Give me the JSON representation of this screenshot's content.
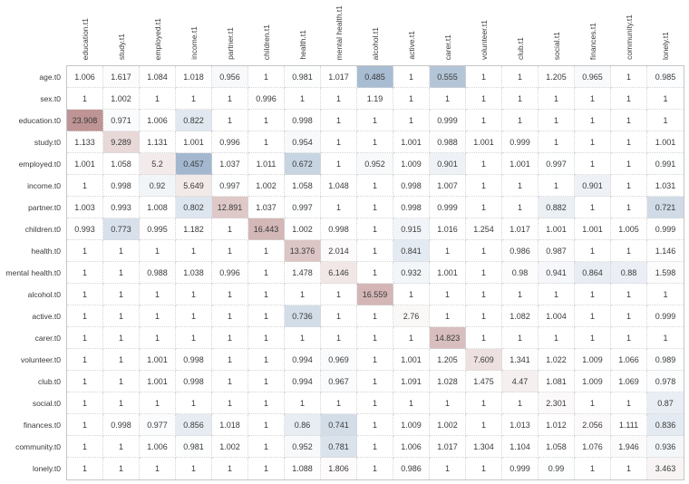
{
  "colors": {
    "background": "#ffffff",
    "cell_text": "#3a3a3a",
    "label_text": "#3a3a3a",
    "grid_line_inner": "#d6d6d6",
    "grid_line_outer": "#c6c6c6",
    "positive_anchor": "#bc8f8f",
    "negative_anchor": "#a0b6ce",
    "neutral": "#ffffff"
  },
  "chart_data": {
    "type": "heatmap",
    "title": "",
    "xlabel": "",
    "ylabel": "",
    "legend": "none",
    "grid": "dotted",
    "color_center_value": 1,
    "color_scale": "diverging red (>1) / blue (<1), white at 1",
    "rows": [
      "age.t0",
      "sex.t0",
      "education.t0",
      "study.t0",
      "employed.t0",
      "income.t0",
      "partner.t0",
      "children.t0",
      "health.t0",
      "mental health.t0",
      "alcohol.t0",
      "active.t0",
      "carer.t0",
      "volunteer.t0",
      "club.t0",
      "social.t0",
      "finances.t0",
      "community.t0",
      "lonely.t0"
    ],
    "columns": [
      "education.t1",
      "study.t1",
      "employed.t1",
      "income.t1",
      "partner.t1",
      "children.t1",
      "health.t1",
      "mental health.t1",
      "alcohol.t1",
      "active.t1",
      "carer.t1",
      "volunteer.t1",
      "club.t1",
      "social.t1",
      "finances.t1",
      "community.t1",
      "lonely.t1"
    ],
    "values": [
      [
        1.006,
        1.617,
        1.084,
        1.018,
        0.956,
        1,
        0.981,
        1.017,
        0.485,
        1,
        0.555,
        1,
        1,
        1.205,
        0.965,
        1,
        0.985
      ],
      [
        1,
        1.002,
        1,
        1,
        1,
        0.996,
        1,
        1,
        1.19,
        1,
        1,
        1,
        1,
        1,
        1,
        1,
        1
      ],
      [
        23.908,
        0.971,
        1.006,
        0.822,
        1,
        1,
        0.998,
        1,
        1,
        1,
        0.999,
        1,
        1,
        1,
        1,
        1,
        1
      ],
      [
        1.133,
        9.289,
        1.131,
        1.001,
        0.996,
        1,
        0.954,
        1,
        1,
        1.001,
        0.988,
        1.001,
        0.999,
        1,
        1,
        1,
        1.001
      ],
      [
        1.001,
        1.058,
        5.2,
        0.457,
        1.037,
        1.011,
        0.672,
        1,
        0.952,
        1.009,
        0.901,
        1,
        1.001,
        0.997,
        1,
        1,
        0.991
      ],
      [
        1,
        0.998,
        0.92,
        5.649,
        0.997,
        1.002,
        1.058,
        1.048,
        1,
        0.998,
        1.007,
        1,
        1,
        1,
        0.901,
        1,
        1.031
      ],
      [
        1.003,
        0.993,
        1.008,
        0.802,
        12.891,
        1.037,
        0.997,
        1,
        1,
        0.998,
        0.999,
        1,
        1,
        0.882,
        1,
        1,
        0.721
      ],
      [
        0.993,
        0.773,
        0.995,
        1.182,
        1,
        16.443,
        1.002,
        0.998,
        1,
        0.915,
        1.016,
        1.254,
        1.017,
        1.001,
        1.001,
        1.005,
        0.999
      ],
      [
        1,
        1,
        1,
        1,
        1,
        1,
        13.376,
        2.014,
        1,
        0.841,
        1,
        1,
        0.986,
        0.987,
        1,
        1,
        1.146
      ],
      [
        1,
        1,
        0.988,
        1.038,
        0.996,
        1,
        1.478,
        6.146,
        1,
        0.932,
        1.001,
        1,
        0.98,
        0.941,
        0.864,
        0.88,
        1.598
      ],
      [
        1,
        1,
        1,
        1,
        1,
        1,
        1,
        1,
        16.559,
        1,
        1,
        1,
        1,
        1,
        1,
        1,
        1
      ],
      [
        1,
        1,
        1,
        1,
        1,
        1,
        0.736,
        1,
        1,
        2.76,
        1,
        1,
        1.082,
        1.004,
        1,
        1,
        0.999
      ],
      [
        1,
        1,
        1,
        1,
        1,
        1,
        1,
        1,
        1,
        1,
        14.823,
        1,
        1,
        1,
        1,
        1,
        1
      ],
      [
        1,
        1,
        1.001,
        0.998,
        1,
        1,
        0.994,
        0.969,
        1,
        1.001,
        1.205,
        7.609,
        1.341,
        1.022,
        1.009,
        1.066,
        0.989
      ],
      [
        1,
        1,
        1.001,
        0.998,
        1,
        1,
        0.994,
        0.967,
        1,
        1.091,
        1.028,
        1.475,
        4.47,
        1.081,
        1.009,
        1.069,
        0.978
      ],
      [
        1,
        1,
        1,
        1,
        1,
        1,
        1,
        1,
        1,
        1,
        1,
        1,
        1,
        2.301,
        1,
        1,
        0.87
      ],
      [
        1,
        0.998,
        0.977,
        0.856,
        1.018,
        1,
        0.86,
        0.741,
        1,
        1.009,
        1.002,
        1,
        1.013,
        1.012,
        2.056,
        1.111,
        0.836
      ],
      [
        1,
        1,
        1.006,
        0.981,
        1.002,
        1,
        0.952,
        0.781,
        1,
        1.006,
        1.017,
        1.304,
        1.104,
        1.058,
        1.076,
        1.946,
        0.936
      ],
      [
        1,
        1,
        1,
        1,
        1,
        1,
        1.088,
        1.806,
        1,
        0.986,
        1,
        1,
        0.999,
        0.99,
        1,
        1,
        3.463
      ]
    ]
  }
}
